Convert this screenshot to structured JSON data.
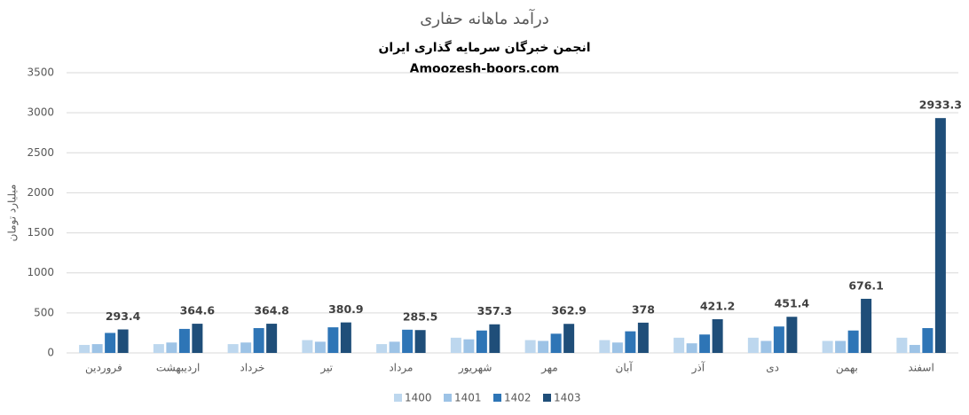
{
  "chart_data": {
    "type": "bar",
    "title": "درآمد ماهانه حفاری",
    "subtitle": "انجمن خبرگان سرمایه گذاری ایران",
    "annotation": "Amoozesh-boors.com",
    "y_label": "میلیارد تومان",
    "categories": [
      "فروردین",
      "اردیبهشت",
      "خرداد",
      "تیر",
      "مرداد",
      "شهریور",
      "مهر",
      "آبان",
      "آذر",
      "دی",
      "بهمن",
      "اسفند"
    ],
    "series": [
      {
        "name": "1400",
        "color": "#bdd7ee",
        "values": [
          100,
          110,
          110,
          160,
          110,
          190,
          160,
          160,
          190,
          190,
          150,
          190
        ]
      },
      {
        "name": "1401",
        "color": "#9dc3e6",
        "values": [
          110,
          130,
          130,
          140,
          140,
          170,
          150,
          130,
          120,
          150,
          150,
          100
        ]
      },
      {
        "name": "1402",
        "color": "#2e75b6",
        "values": [
          250,
          300,
          310,
          320,
          290,
          280,
          240,
          270,
          230,
          330,
          280,
          310
        ]
      },
      {
        "name": "1403",
        "color": "#1f4e79",
        "values": [
          293.4,
          364.6,
          364.8,
          380.9,
          285.5,
          357.3,
          362.9,
          378,
          421.2,
          451.4,
          676.1,
          2933.3
        ],
        "labels": true
      }
    ],
    "ylim": [
      0,
      3500
    ],
    "yticks": [
      0,
      500,
      1000,
      1500,
      2000,
      2500,
      3000,
      3500
    ],
    "grid": true,
    "legend": "bottom"
  }
}
